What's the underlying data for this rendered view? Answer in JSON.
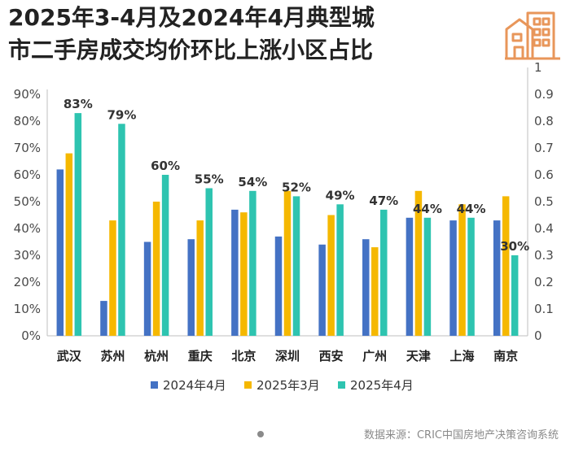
{
  "title_line1": "2025年3-4月及2024年4月典型城",
  "title_line2": "市二手房成交均价环比上涨小区占比",
  "logo_icon": "buildings-icon",
  "source": "数据来源：CRIC中国房地产决策咨询系统",
  "colors": {
    "s2024_04": "#4472C4",
    "s2025_03": "#F5B800",
    "s2025_04": "#2EC4B0",
    "axis": "#bfbfbf",
    "logo": "#E8965A"
  },
  "chart_data": {
    "type": "bar",
    "title": "2025年3-4月及2024年4月典型城市二手房成交均价环比上涨小区占比",
    "categories": [
      "武汉",
      "苏州",
      "杭州",
      "重庆",
      "北京",
      "深圳",
      "西安",
      "广州",
      "天津",
      "上海",
      "南京"
    ],
    "series": [
      {
        "name": "2024年4月",
        "values": [
          62,
          13,
          35,
          36,
          47,
          37,
          34,
          36,
          44,
          43,
          43
        ]
      },
      {
        "name": "2025年3月",
        "values": [
          68,
          43,
          50,
          43,
          46,
          54,
          45,
          33,
          54,
          49,
          52
        ]
      },
      {
        "name": "2025年4月",
        "values": [
          83,
          79,
          60,
          55,
          54,
          52,
          49,
          47,
          44,
          44,
          30
        ]
      }
    ],
    "data_labels": [
      "83%",
      "79%",
      "60%",
      "55%",
      "54%",
      "52%",
      "49%",
      "47%",
      "44%",
      "44%",
      "30%"
    ],
    "y_left": {
      "min": 0,
      "max": 90,
      "ticks": [
        "0%",
        "10%",
        "20%",
        "30%",
        "40%",
        "50%",
        "60%",
        "70%",
        "80%",
        "90%"
      ]
    },
    "y_right": {
      "min": 0,
      "max": 1,
      "ticks": [
        "0",
        "0.1",
        "0.2",
        "0.3",
        "0.4",
        "0.5",
        "0.6",
        "0.7",
        "0.8",
        "0.9",
        "1"
      ]
    },
    "xlabel": "",
    "ylabel": "",
    "legend_position": "bottom",
    "grid": false
  }
}
